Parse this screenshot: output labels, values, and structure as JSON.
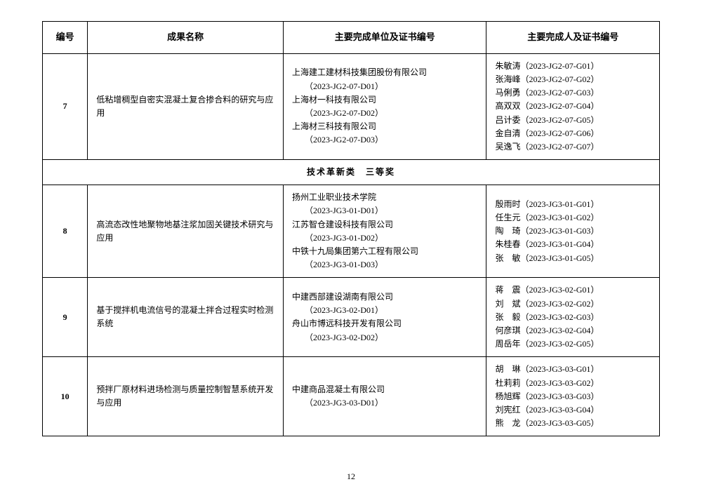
{
  "headers": {
    "id": "编号",
    "name": "成果名称",
    "unit": "主要完成单位及证书编号",
    "person": "主要完成人及证书编号"
  },
  "section_title": "技术革新类　三等奖",
  "page_number": "12",
  "rows": [
    {
      "id": "7",
      "name": "低粘增稠型自密实混凝土复合掺合料的研究与应用",
      "units": [
        {
          "name": "上海建工建材科技集团股份有限公司",
          "code": "（2023-JG2-07-D01）"
        },
        {
          "name": "上海材一科技有限公司",
          "code": "（2023-JG2-07-D02）"
        },
        {
          "name": "上海材三科技有限公司",
          "code": "（2023-JG2-07-D03）"
        }
      ],
      "persons": [
        "朱敏涛（2023-JG2-07-G01）",
        "张海峰（2023-JG2-07-G02）",
        "马俐勇（2023-JG2-07-G03）",
        "高双双（2023-JG2-07-G04）",
        "吕计委（2023-JG2-07-G05）",
        "金自清（2023-JG2-07-G06）",
        "吴逸飞（2023-JG2-07-G07）"
      ]
    },
    {
      "id": "8",
      "name": "高流态改性地聚物地基注浆加固关键技术研究与应用",
      "units": [
        {
          "name": "扬州工业职业技术学院",
          "code": "（2023-JG3-01-D01）"
        },
        {
          "name": "江苏智仓建设科技有限公司",
          "code": "（2023-JG3-01-D02）"
        },
        {
          "name": "中铁十九局集团第六工程有限公司",
          "code": "（2023-JG3-01-D03）"
        }
      ],
      "persons": [
        "殷雨时（2023-JG3-01-G01）",
        "任生元（2023-JG3-01-G02）",
        "陶　琦（2023-JG3-01-G03）",
        "朱桂春（2023-JG3-01-G04）",
        "张　敏（2023-JG3-01-G05）"
      ]
    },
    {
      "id": "9",
      "name": "基于搅拌机电流信号的混凝土拌合过程实时检测系统",
      "units": [
        {
          "name": "中建西部建设湖南有限公司",
          "code": "（2023-JG3-02-D01）"
        },
        {
          "name": "舟山市博远科技开发有限公司",
          "code": "（2023-JG3-02-D02）"
        }
      ],
      "persons": [
        "蒋　震（2023-JG3-02-G01）",
        "刘　斌（2023-JG3-02-G02）",
        "张　毅（2023-JG3-02-G03）",
        "何彦琪（2023-JG3-02-G04）",
        "周岳年（2023-JG3-02-G05）"
      ]
    },
    {
      "id": "10",
      "name": "预拌厂原材料进场检测与质量控制智慧系统开发与应用",
      "units": [
        {
          "name": "中建商品混凝土有限公司",
          "code": "（2023-JG3-03-D01）"
        }
      ],
      "persons": [
        "胡　琳（2023-JG3-03-G01）",
        "杜莉莉（2023-JG3-03-G02）",
        "杨旭辉（2023-JG3-03-G03）",
        "刘宪红（2023-JG3-03-G04）",
        "熊　龙（2023-JG3-03-G05）"
      ]
    }
  ]
}
